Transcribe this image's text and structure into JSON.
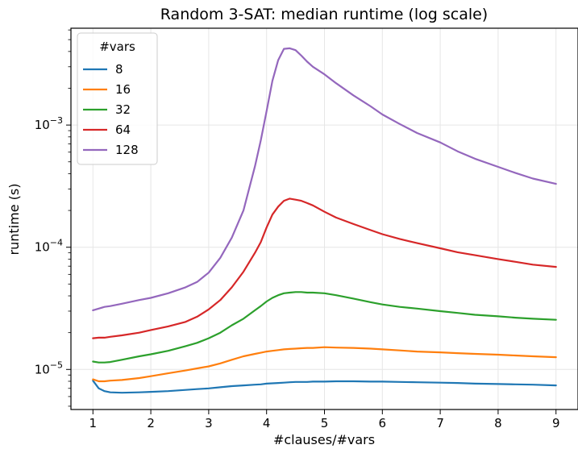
{
  "chart_data": {
    "type": "line",
    "title": "Random 3-SAT: median runtime (log scale)",
    "xlabel": "#clauses/#vars",
    "ylabel": "runtime (s)",
    "xlim": [
      0.62,
      9.38
    ],
    "ylim": [
      4.7e-06,
      0.0062
    ],
    "yscale": "log",
    "grid": true,
    "legend": {
      "title": "#vars",
      "placement": "top-left"
    },
    "xticks": [
      1,
      2,
      3,
      4,
      5,
      6,
      7,
      8,
      9
    ],
    "xtick_labels": [
      "1",
      "2",
      "3",
      "4",
      "5",
      "6",
      "7",
      "8",
      "9"
    ],
    "yticks": [
      {
        "value": 1e-05,
        "base": "10",
        "exp": "−5"
      },
      {
        "value": 0.0001,
        "base": "10",
        "exp": "−4"
      },
      {
        "value": 0.001,
        "base": "10",
        "exp": "−3"
      }
    ],
    "x": [
      1,
      1.1,
      1.2,
      1.3,
      1.5,
      1.8,
      2,
      2.3,
      2.6,
      2.8,
      3,
      3.2,
      3.4,
      3.6,
      3.8,
      3.9,
      4,
      4.1,
      4.2,
      4.3,
      4.4,
      4.5,
      4.6,
      4.7,
      4.8,
      5,
      5.2,
      5.5,
      5.8,
      6,
      6.3,
      6.6,
      7,
      7.3,
      7.6,
      8,
      8.3,
      8.6,
      9
    ],
    "series": [
      {
        "name": "8",
        "color": "#1f77b4",
        "values": [
          8.1e-06,
          7e-06,
          6.65e-06,
          6.5e-06,
          6.45e-06,
          6.5e-06,
          6.55e-06,
          6.65e-06,
          6.8e-06,
          6.9e-06,
          7e-06,
          7.15e-06,
          7.3e-06,
          7.4e-06,
          7.5e-06,
          7.55e-06,
          7.65e-06,
          7.7e-06,
          7.75e-06,
          7.8e-06,
          7.85e-06,
          7.9e-06,
          7.9e-06,
          7.9e-06,
          7.95e-06,
          7.95e-06,
          8e-06,
          8e-06,
          7.95e-06,
          7.95e-06,
          7.9e-06,
          7.85e-06,
          7.8e-06,
          7.75e-06,
          7.65e-06,
          7.6e-06,
          7.55e-06,
          7.5e-06,
          7.4e-06
        ]
      },
      {
        "name": "16",
        "color": "#ff7f0e",
        "values": [
          8.3e-06,
          8e-06,
          8e-06,
          8.1e-06,
          8.2e-06,
          8.5e-06,
          8.8e-06,
          9.3e-06,
          9.8e-06,
          1.02e-05,
          1.06e-05,
          1.12e-05,
          1.2e-05,
          1.28e-05,
          1.34e-05,
          1.37e-05,
          1.4e-05,
          1.42e-05,
          1.44e-05,
          1.46e-05,
          1.47e-05,
          1.48e-05,
          1.49e-05,
          1.5e-05,
          1.5e-05,
          1.52e-05,
          1.51e-05,
          1.5e-05,
          1.48e-05,
          1.46e-05,
          1.43e-05,
          1.4e-05,
          1.38e-05,
          1.36e-05,
          1.34e-05,
          1.32e-05,
          1.3e-05,
          1.28e-05,
          1.26e-05
        ]
      },
      {
        "name": "32",
        "color": "#2ca02c",
        "values": [
          1.16e-05,
          1.14e-05,
          1.14e-05,
          1.15e-05,
          1.2e-05,
          1.28e-05,
          1.33e-05,
          1.42e-05,
          1.55e-05,
          1.65e-05,
          1.8e-05,
          2e-05,
          2.3e-05,
          2.6e-05,
          3.05e-05,
          3.3e-05,
          3.6e-05,
          3.85e-05,
          4.05e-05,
          4.2e-05,
          4.25e-05,
          4.3e-05,
          4.3e-05,
          4.25e-05,
          4.25e-05,
          4.2e-05,
          4.05e-05,
          3.8e-05,
          3.55e-05,
          3.4e-05,
          3.25e-05,
          3.15e-05,
          3e-05,
          2.9e-05,
          2.8e-05,
          2.72e-05,
          2.65e-05,
          2.6e-05,
          2.55e-05
        ]
      },
      {
        "name": "64",
        "color": "#d62728",
        "values": [
          1.8e-05,
          1.82e-05,
          1.82e-05,
          1.85e-05,
          1.9e-05,
          2e-05,
          2.1e-05,
          2.25e-05,
          2.45e-05,
          2.7e-05,
          3.1e-05,
          3.7e-05,
          4.7e-05,
          6.3e-05,
          9e-05,
          0.00011,
          0.000145,
          0.000185,
          0.000215,
          0.00024,
          0.00025,
          0.000245,
          0.00024,
          0.00023,
          0.00022,
          0.000195,
          0.000175,
          0.000155,
          0.000138,
          0.000128,
          0.000117,
          0.000108,
          9.8e-05,
          9.1e-05,
          8.6e-05,
          8e-05,
          7.6e-05,
          7.2e-05,
          6.9e-05
        ]
      },
      {
        "name": "128",
        "color": "#9467bd",
        "values": [
          3.05e-05,
          3.15e-05,
          3.25e-05,
          3.3e-05,
          3.45e-05,
          3.7e-05,
          3.85e-05,
          4.2e-05,
          4.7e-05,
          5.2e-05,
          6.2e-05,
          8.2e-05,
          0.00012,
          0.0002,
          0.00046,
          0.00075,
          0.0013,
          0.0023,
          0.0034,
          0.0042,
          0.00425,
          0.0041,
          0.0037,
          0.0033,
          0.003,
          0.0026,
          0.0022,
          0.00175,
          0.00142,
          0.00122,
          0.00102,
          0.00086,
          0.00072,
          0.00061,
          0.00053,
          0.000455,
          0.000405,
          0.000365,
          0.00033
        ]
      }
    ]
  }
}
